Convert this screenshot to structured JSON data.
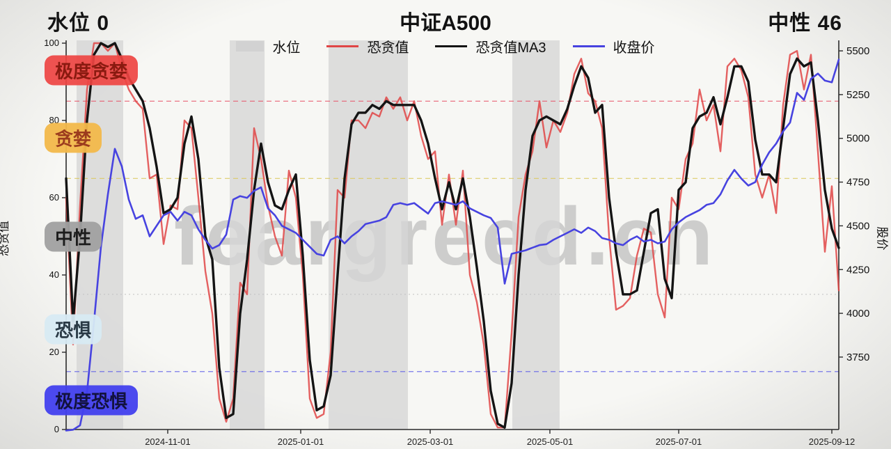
{
  "header": {
    "left_stat": "水位  0",
    "title": "中证A500",
    "right_stat": "中性  46"
  },
  "watermark": "feargreed.cn",
  "legend": {
    "items": [
      {
        "label": "水位",
        "type": "band",
        "color": "#d2d2d2"
      },
      {
        "label": "恐贪值",
        "type": "line",
        "color": "#e04545"
      },
      {
        "label": "恐贪值MA3",
        "type": "line",
        "color": "#141414"
      },
      {
        "label": "收盘价",
        "type": "line",
        "color": "#4743e0"
      }
    ]
  },
  "zones": [
    {
      "label": "极度贪婪",
      "value": 93,
      "bg": "rgba(238,68,66,0.92)",
      "text_color": "#8a1a10"
    },
    {
      "label": "贪婪",
      "value": 75.5,
      "bg": "rgba(242,184,74,0.95)",
      "text_color": "#9c3c1e"
    },
    {
      "label": "中性",
      "value": 50,
      "bg": "rgba(160,160,160,0.95)",
      "text_color": "#1c1c1c"
    },
    {
      "label": "恐惧",
      "value": 26,
      "bg": "rgba(215,234,243,0.95)",
      "text_color": "#2a3a46"
    },
    {
      "label": "极度恐惧",
      "value": 7.5,
      "bg": "rgba(66,64,238,0.95)",
      "text_color": "#12123e"
    }
  ],
  "chart_data": {
    "type": "line",
    "title": "中证A500",
    "x_start_date": "2024-09-14",
    "x_end_date": "2025-09-15",
    "sampling": "112 uniform samples across the x-axis (~every 3.3 days)",
    "grid": false,
    "legend_position": "top",
    "band_color": "#d6d6d6",
    "x_ticks": [
      {
        "label": "2024-11-01",
        "pos": 0.1315
      },
      {
        "label": "2025-01-01",
        "pos": 0.3036
      },
      {
        "label": "2025-03-01",
        "pos": 0.4712
      },
      {
        "label": "2025-05-01",
        "pos": 0.6261
      },
      {
        "label": "2025-07-01",
        "pos": 0.7928
      },
      {
        "label": "2025-09-12",
        "pos": 0.991
      }
    ],
    "left_axis": {
      "label": "恐贪值",
      "range": [
        0,
        100
      ],
      "ticks": [
        0,
        20,
        40,
        60,
        80,
        100
      ]
    },
    "right_axis": {
      "label": "股价",
      "range": [
        3336,
        5544
      ],
      "ticks": [
        3750,
        4000,
        4250,
        4500,
        4750,
        5000,
        5250,
        5500
      ]
    },
    "reference_lines": [
      {
        "value": 85,
        "color": "#e8566a",
        "dash": "7,5"
      },
      {
        "value": 65,
        "color": "#dcc85c",
        "dash": "7,5"
      },
      {
        "value": 35,
        "color": "#c2c2c2",
        "dash": "2,4"
      },
      {
        "value": 15,
        "color": "#5a5ae8",
        "dash": "7,5"
      }
    ],
    "shaded_bands": [
      {
        "from": 0.0135,
        "to": 0.0739
      },
      {
        "from": 0.2117,
        "to": 0.2568
      },
      {
        "from": 0.3396,
        "to": 0.4423
      },
      {
        "from": 0.5775,
        "to": 0.6387
      }
    ],
    "series": [
      {
        "name": "恐贪值",
        "axis": "left",
        "color": "#e04545",
        "width": 2.4,
        "opacity": 0.85,
        "values": [
          60,
          22,
          58,
          88,
          100,
          100,
          98,
          100,
          93,
          88,
          85,
          83,
          65,
          66,
          48,
          58,
          57,
          80,
          78,
          60,
          41,
          30,
          8,
          2,
          8,
          38,
          35,
          78,
          70,
          58,
          50,
          45,
          67,
          60,
          40,
          8,
          3,
          4,
          20,
          62,
          60,
          80,
          80,
          78,
          82,
          81,
          86,
          83,
          86,
          80,
          85,
          76,
          70,
          72,
          53,
          66,
          53,
          67,
          40,
          33,
          22,
          4,
          0.5,
          0.5,
          25,
          55,
          66,
          72,
          85,
          73,
          80,
          77,
          82,
          92,
          96,
          87,
          85,
          78,
          50,
          31,
          32,
          34,
          45,
          52,
          51,
          35,
          29,
          60,
          57,
          70,
          74,
          88,
          80,
          84,
          72,
          94,
          96,
          93,
          86,
          66,
          60,
          66,
          56,
          84,
          97,
          98,
          88,
          97,
          72,
          46,
          63,
          36
        ]
      },
      {
        "name": "恐贪值MA3",
        "axis": "left",
        "color": "#141414",
        "width": 3.4,
        "opacity": 1,
        "values": [
          65,
          28,
          50,
          80,
          97,
          100,
          99,
          100,
          96,
          91,
          88,
          85,
          78,
          68,
          56,
          57,
          60,
          74,
          81,
          70,
          50,
          44,
          16,
          3,
          4,
          30,
          44,
          62,
          74,
          64,
          58,
          57,
          62,
          66,
          45,
          18,
          5,
          6,
          14,
          40,
          65,
          79,
          82,
          82,
          84,
          83,
          85,
          84,
          84,
          84,
          84,
          80,
          74,
          65,
          57,
          64,
          57,
          65,
          55,
          42,
          28,
          10,
          1.5,
          0.5,
          12,
          40,
          62,
          76,
          80,
          81,
          80,
          79,
          83,
          89,
          94,
          91,
          82,
          84,
          60,
          46,
          35,
          35,
          36,
          46,
          56,
          57,
          39,
          34,
          62,
          64,
          78,
          81,
          82,
          86,
          79,
          86,
          94,
          94,
          90,
          75,
          66,
          66,
          64,
          78,
          92,
          96,
          94,
          95,
          80,
          62,
          52,
          47
        ]
      },
      {
        "name": "收盘价",
        "axis": "right",
        "color": "#4743e0",
        "width": 2.6,
        "opacity": 1,
        "values": [
          3330,
          3335,
          3360,
          3550,
          3950,
          4380,
          4680,
          4940,
          4840,
          4650,
          4540,
          4560,
          4440,
          4500,
          4560,
          4580,
          4530,
          4580,
          4560,
          4480,
          4420,
          4370,
          4390,
          4450,
          4650,
          4670,
          4660,
          4700,
          4720,
          4600,
          4560,
          4500,
          4480,
          4460,
          4420,
          4380,
          4340,
          4330,
          4420,
          4440,
          4400,
          4440,
          4470,
          4510,
          4520,
          4530,
          4550,
          4620,
          4630,
          4620,
          4630,
          4600,
          4570,
          4630,
          4640,
          4630,
          4620,
          4640,
          4600,
          4580,
          4560,
          4545,
          4490,
          4170,
          4340,
          4350,
          4360,
          4375,
          4390,
          4395,
          4420,
          4440,
          4460,
          4480,
          4460,
          4490,
          4470,
          4430,
          4420,
          4400,
          4390,
          4420,
          4440,
          4410,
          4420,
          4400,
          4410,
          4480,
          4520,
          4550,
          4570,
          4590,
          4620,
          4630,
          4680,
          4760,
          4820,
          4770,
          4730,
          4750,
          4850,
          4920,
          4970,
          5040,
          5090,
          5260,
          5220,
          5340,
          5370,
          5330,
          5320,
          5450
        ]
      }
    ]
  }
}
